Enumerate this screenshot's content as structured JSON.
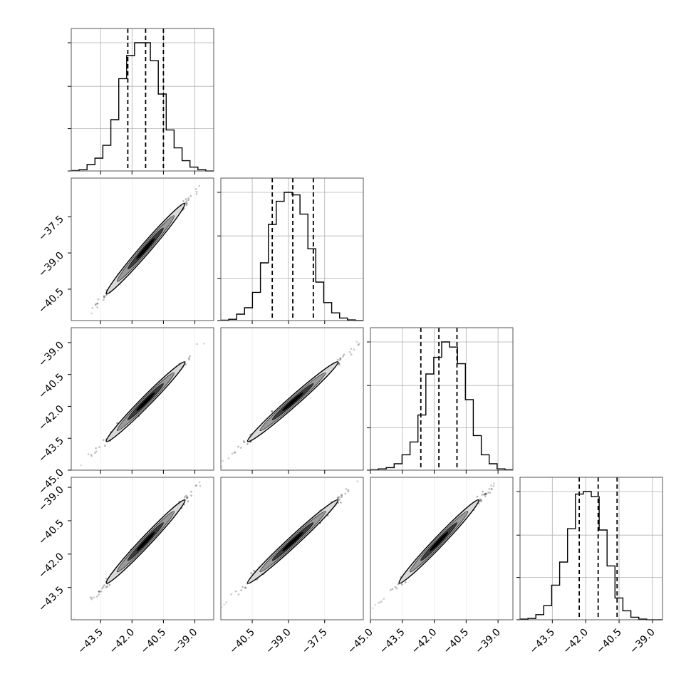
{
  "chart_data": {
    "type": "corner",
    "title": "",
    "grid": true,
    "colors": {
      "line": "#000000",
      "grid": "#b0b0b0",
      "frame": "#555555",
      "axis": "#000000"
    },
    "parameters": [
      {
        "range": [
          -44.9,
          -38.1
        ],
        "ticks": [
          -43.5,
          -42.0,
          -40.5,
          -39.0
        ],
        "tick_labels": [
          "−43.5",
          "−42.0",
          "−40.5",
          "−39.0"
        ]
      },
      {
        "range": [
          -41.8,
          -35.9
        ],
        "ticks": [
          -40.5,
          -39.0,
          -37.5
        ],
        "tick_labels": [
          "−40.5",
          "−39.0",
          "−37.5"
        ]
      },
      {
        "range": [
          -45.0,
          -38.3
        ],
        "ticks": [
          -45.0,
          -43.5,
          -42.0,
          -40.5,
          -39.0
        ],
        "tick_labels": [
          "−45.0",
          "−43.5",
          "−42.0",
          "−40.5",
          "−39.0"
        ]
      },
      {
        "range": [
          -44.95,
          -38.55
        ],
        "ticks": [
          -43.5,
          -42.0,
          -40.5,
          -39.0
        ],
        "tick_labels": [
          "−43.5",
          "−42.0",
          "−40.5",
          "−39.0"
        ]
      }
    ],
    "histograms": [
      {
        "counts": [
          0.003,
          0.01,
          0.05,
          0.1,
          0.2,
          0.4,
          0.72,
          0.9,
          1.0,
          1.0,
          0.86,
          0.6,
          0.32,
          0.18,
          0.08,
          0.03,
          0.01,
          0.0
        ],
        "quantiles": [
          -42.2,
          -41.35,
          -40.5
        ]
      },
      {
        "counts": [
          0.003,
          0.01,
          0.05,
          0.1,
          0.22,
          0.45,
          0.75,
          0.93,
          1.0,
          0.98,
          0.83,
          0.56,
          0.3,
          0.14,
          0.06,
          0.02,
          0.005,
          0.0
        ],
        "quantiles": [
          -39.67,
          -38.82,
          -37.97
        ]
      },
      {
        "counts": [
          0.003,
          0.01,
          0.02,
          0.05,
          0.12,
          0.22,
          0.43,
          0.75,
          0.88,
          1.0,
          0.96,
          0.83,
          0.55,
          0.27,
          0.12,
          0.05,
          0.01,
          0.003
        ],
        "quantiles": [
          -42.63,
          -41.78,
          -40.93
        ]
      },
      {
        "counts": [
          0.005,
          0.01,
          0.04,
          0.11,
          0.27,
          0.45,
          0.71,
          0.98,
          1.0,
          0.96,
          0.7,
          0.42,
          0.17,
          0.07,
          0.02,
          0.005,
          0.0,
          0.0
        ],
        "quantiles": [
          -42.29,
          -41.44,
          -40.59
        ]
      }
    ],
    "scatter_pairs": [
      {
        "x_param": 1,
        "y_param": 2
      },
      {
        "x_param": 1,
        "y_param": 3
      },
      {
        "x_param": 2,
        "y_param": 3
      },
      {
        "x_param": 1,
        "y_param": 4
      },
      {
        "x_param": 2,
        "y_param": 4
      },
      {
        "x_param": 3,
        "y_param": 4
      }
    ]
  }
}
